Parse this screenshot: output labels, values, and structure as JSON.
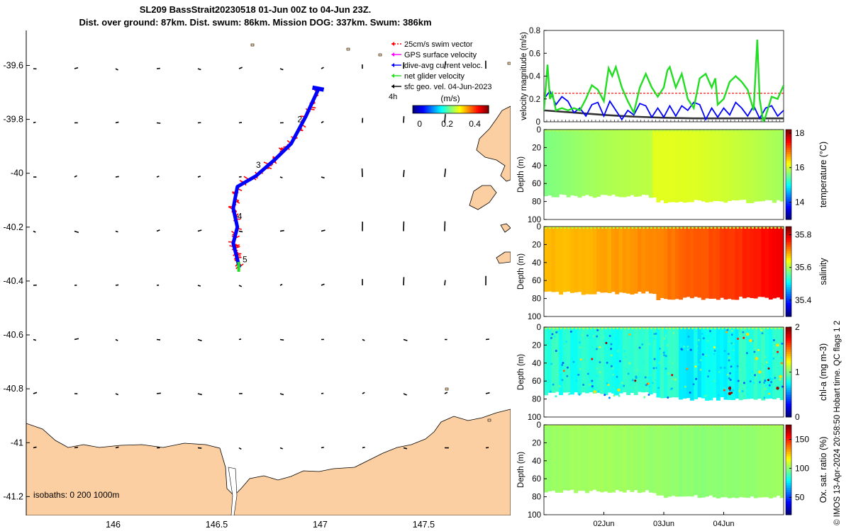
{
  "title_line1": "SL209 BassStrait20230518 01-Jun 00Z to 04-Jun 23Z.",
  "title_line2": "Dist. over ground: 87km. Dist. swum: 86km. Mission DOG: 337km. Swum: 386km",
  "credit": "© IMOS 13-Apr-2024 20:58:50 Hobart time. QC flags 1  2",
  "colors": {
    "land": "#FBCFA2",
    "track_red": "#FF0000",
    "track_blue": "#0000FF",
    "green": "#22DD22",
    "magenta": "#FF00FF",
    "black": "#000000"
  },
  "chart_data": [
    {
      "type": "map",
      "name": "glider track map",
      "xticks": [
        "146",
        "146.5",
        "147",
        "147.5"
      ],
      "xtick_values": [
        146,
        146.5,
        147,
        147.5
      ],
      "yticks": [
        "-39.6",
        "-39.8",
        "-40",
        "-40.2",
        "-40.4",
        "-40.6",
        "-40.8",
        "-41",
        "-41.2"
      ],
      "ytick_values": [
        -39.6,
        -39.8,
        -40.0,
        -40.2,
        -40.4,
        -40.6,
        -40.8,
        -41.0,
        -41.2
      ],
      "xlim": [
        145.58,
        147.92
      ],
      "ylim": [
        -41.27,
        -39.47
      ],
      "legend": [
        {
          "label": "25cm/s swim vector",
          "color": "#FF0000",
          "style": "dashed-arrow"
        },
        {
          "label": "GPS surface velocity",
          "color": "#FF00FF",
          "style": "arrow"
        },
        {
          "label": "dive-avg current veloc.",
          "color": "#0000FF",
          "style": "arrow"
        },
        {
          "label": "net glider velocity",
          "color": "#22DD22",
          "style": "arrow"
        },
        {
          "label": "sfc geo. vel. 04-Jun-2023",
          "color": "#000000",
          "style": "arrow"
        }
      ],
      "legend_extra": "4h",
      "colorbar": {
        "label": "(m/s)",
        "ticks": [
          "0",
          "0.2",
          "0.4"
        ],
        "tick_values": [
          0,
          0.2,
          0.4
        ],
        "range": [
          -0.05,
          0.5
        ]
      },
      "track_lon": [
        146.99,
        146.93,
        146.86,
        146.78,
        146.69,
        146.6,
        146.58,
        146.6,
        146.58,
        146.59,
        146.6,
        146.61
      ],
      "track_lat": [
        -39.69,
        -39.79,
        -39.89,
        -39.95,
        -40.01,
        -40.05,
        -40.13,
        -40.2,
        -40.26,
        -40.29,
        -40.32,
        -40.35
      ],
      "day_labels": [
        {
          "label": "2",
          "lon": 146.89,
          "lat": -39.81
        },
        {
          "label": "3",
          "lon": 146.69,
          "lat": -39.98
        },
        {
          "label": "4",
          "lon": 146.6,
          "lat": -40.17
        },
        {
          "label": "5",
          "lon": 146.625,
          "lat": -40.33
        }
      ],
      "isobath_label": "isobaths: 0   200  1000m"
    },
    {
      "type": "line",
      "name": "velocity magnitude",
      "ylabel": "velocity magnitude (m/s)",
      "yticks": [
        "0",
        "0.2",
        "0.4",
        "0.6",
        "0.8"
      ],
      "ylim": [
        0,
        0.8
      ],
      "xlim": [
        0,
        4
      ],
      "series": [
        {
          "name": "net glider velocity",
          "color": "#22DD22",
          "x": [
            0.0,
            0.06,
            0.1,
            0.14,
            0.2,
            0.3,
            0.4,
            0.5,
            0.6,
            0.7,
            0.8,
            0.9,
            1.0,
            1.08,
            1.14,
            1.2,
            1.3,
            1.4,
            1.5,
            1.6,
            1.7,
            1.8,
            1.9,
            2.0,
            2.06,
            2.1,
            2.2,
            2.3,
            2.4,
            2.5,
            2.6,
            2.7,
            2.8,
            2.86,
            2.9,
            3.0,
            3.1,
            3.2,
            3.3,
            3.4,
            3.5,
            3.56,
            3.6,
            3.66,
            3.7,
            3.8,
            3.9,
            4.0
          ],
          "y": [
            0.1,
            0.5,
            0.2,
            0.25,
            0.1,
            0.12,
            0.1,
            0.12,
            0.1,
            0.2,
            0.32,
            0.28,
            0.18,
            0.47,
            0.4,
            0.48,
            0.3,
            0.18,
            0.08,
            0.3,
            0.42,
            0.3,
            0.22,
            0.3,
            0.45,
            0.48,
            0.3,
            0.42,
            0.2,
            0.12,
            0.38,
            0.42,
            0.3,
            0.38,
            0.15,
            0.2,
            0.35,
            0.4,
            0.35,
            0.28,
            0.1,
            0.72,
            0.2,
            0.0,
            0.05,
            0.22,
            0.2,
            0.32
          ]
        },
        {
          "name": "dive-avg current veloc.",
          "color": "#0000FF",
          "x": [
            0.0,
            0.1,
            0.2,
            0.3,
            0.4,
            0.5,
            0.6,
            0.7,
            0.8,
            0.9,
            1.0,
            1.1,
            1.2,
            1.3,
            1.4,
            1.5,
            1.6,
            1.7,
            1.8,
            1.9,
            2.0,
            2.1,
            2.2,
            2.3,
            2.4,
            2.5,
            2.6,
            2.7,
            2.8,
            2.9,
            3.0,
            3.1,
            3.2,
            3.3,
            3.4,
            3.5,
            3.6,
            3.7,
            3.8,
            3.9,
            4.0
          ],
          "y": [
            0.2,
            0.27,
            0.15,
            0.22,
            0.18,
            0.08,
            0.12,
            0.05,
            0.15,
            0.17,
            0.05,
            0.18,
            0.1,
            0.02,
            0.1,
            0.06,
            0.16,
            0.14,
            0.04,
            0.12,
            0.04,
            0.14,
            0.05,
            0.14,
            0.1,
            0.17,
            0.15,
            0.02,
            0.12,
            0.04,
            0.12,
            0.06,
            0.17,
            0.12,
            0.05,
            0.14,
            0.03,
            0.12,
            0.14,
            0.05,
            0.1
          ]
        },
        {
          "name": "sfc geo. vel.",
          "color": "#333333",
          "x": [
            0,
            0.5,
            1,
            1.5,
            2,
            2.5,
            3,
            3.5,
            4
          ],
          "y": [
            0.1,
            0.08,
            0.06,
            0.045,
            0.035,
            0.03,
            0.03,
            0.03,
            0.03
          ]
        },
        {
          "name": "25cm/s swim reference",
          "color": "#FF0000",
          "x": [
            0,
            4
          ],
          "y": [
            0.25,
            0.25
          ]
        }
      ]
    },
    {
      "type": "heatmap",
      "name": "temperature",
      "ylabel": "Depth (m)",
      "yticks": [
        "0",
        "20",
        "40",
        "60",
        "80",
        "100"
      ],
      "ylim": [
        0,
        100
      ],
      "colorbar_label": "temperature (°C)",
      "colorbar_ticks": [
        "14",
        "16",
        "18"
      ],
      "colorbar_range": [
        13,
        18.2
      ],
      "value_range_shown": [
        15.4,
        16.2
      ]
    },
    {
      "type": "heatmap",
      "name": "salinity",
      "ylabel": "Depth (m)",
      "yticks": [
        "0",
        "20",
        "40",
        "60",
        "80",
        "100"
      ],
      "ylim": [
        0,
        100
      ],
      "colorbar_label": "salinity",
      "colorbar_ticks": [
        "35.4",
        "35.6",
        "35.8"
      ],
      "colorbar_range": [
        35.3,
        35.85
      ],
      "value_range_shown": [
        35.68,
        35.79
      ]
    },
    {
      "type": "heatmap",
      "name": "chlorophyll",
      "ylabel": "Depth (m)",
      "yticks": [
        "0",
        "20",
        "40",
        "60",
        "80",
        "100"
      ],
      "ylim": [
        0,
        100
      ],
      "colorbar_label": "chl-a (mg m-3)",
      "colorbar_ticks": [
        "0",
        "1",
        "2"
      ],
      "colorbar_range": [
        0,
        2
      ],
      "value_range_shown": [
        0.7,
        1.0
      ]
    },
    {
      "type": "heatmap",
      "name": "oxygen saturation",
      "ylabel": "Depth (m)",
      "yticks": [
        "0",
        "20",
        "40",
        "60",
        "80",
        "100"
      ],
      "ylim": [
        0,
        100
      ],
      "colorbar_label": "Ox. sat. ratio (%)",
      "colorbar_ticks": [
        "50",
        "100",
        "150"
      ],
      "colorbar_range": [
        20,
        175
      ],
      "value_range_shown": [
        98,
        104
      ],
      "xticks": [
        "02Jun",
        "03Jun",
        "04Jun"
      ],
      "xtick_values": [
        1,
        2,
        3
      ]
    }
  ]
}
